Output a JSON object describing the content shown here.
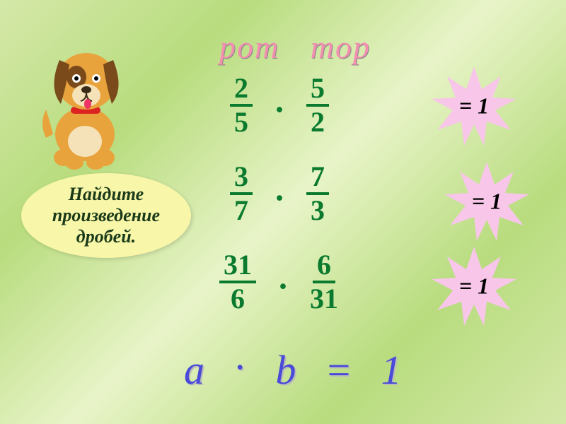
{
  "title": "рот   тор",
  "task_text": "Найдите\nпроизведение\nдробей.",
  "rows": [
    {
      "frac1": {
        "num": "2",
        "den": "5"
      },
      "frac2": {
        "num": "5",
        "den": "2"
      },
      "result": "= 1"
    },
    {
      "frac1": {
        "num": "3",
        "den": "7"
      },
      "frac2": {
        "num": "7",
        "den": "3"
      },
      "result": "= 1"
    },
    {
      "frac1": {
        "num": "31",
        "den": "6"
      },
      "frac2": {
        "num": "6",
        "den": "31"
      },
      "result": "= 1"
    }
  ],
  "formula": {
    "a": "a",
    "b": "b",
    "eq": "=",
    "one": "1"
  },
  "colors": {
    "fraction": "#0a7a2e",
    "star_fill": "#f7c6e8",
    "star_stroke": "#f7c6e8",
    "formula": "#4a4ad8",
    "title": "#f48fb1",
    "bubble": "#f8f6a8"
  },
  "dog": {
    "body": "#e8a33c",
    "ear": "#7a4a1a",
    "nose": "#3a2a18",
    "collar": "#d22"
  }
}
